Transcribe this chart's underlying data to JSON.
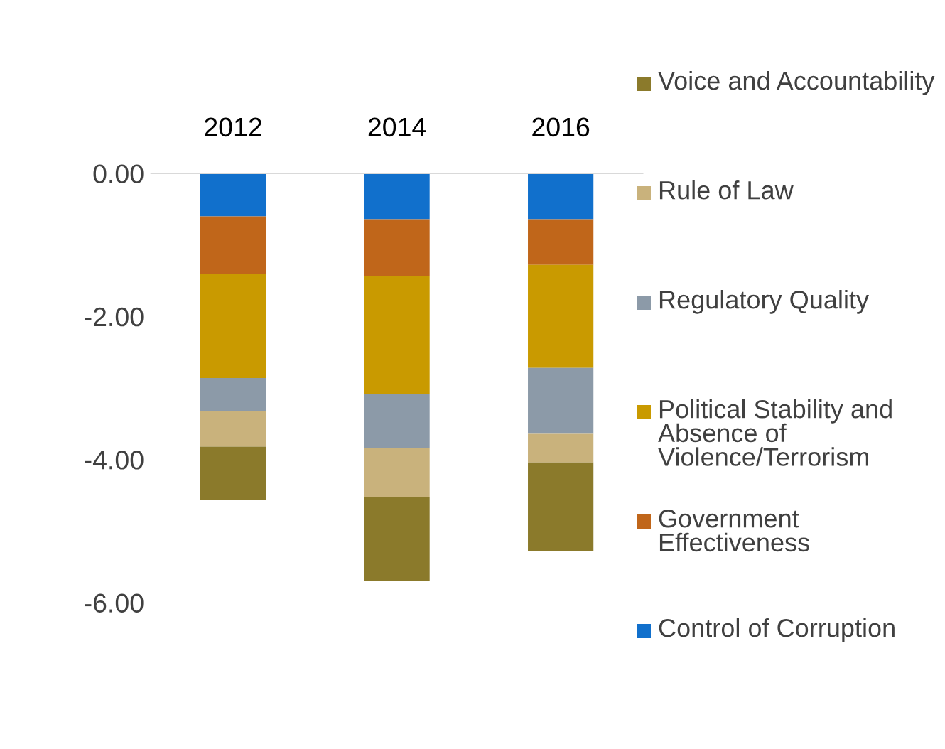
{
  "chart_data": {
    "type": "bar",
    "stacked": true,
    "categories": [
      "2012",
      "2014",
      "2016"
    ],
    "series": [
      {
        "name": "Control of Corruption",
        "color": "#1170cc",
        "values": [
          -0.6,
          -0.64,
          -0.64
        ]
      },
      {
        "name": "Government Effectiveness",
        "color": "#c0661a",
        "values": [
          -0.8,
          -0.8,
          -0.64
        ]
      },
      {
        "name": "Political Stability and Absence of Violence/Terrorism",
        "color": "#c99a00",
        "values": [
          -1.46,
          -1.64,
          -1.44
        ]
      },
      {
        "name": "Regulatory Quality",
        "color": "#8c9aa8",
        "values": [
          -0.46,
          -0.76,
          -0.92
        ]
      },
      {
        "name": "Rule of Law",
        "color": "#c9b27c",
        "values": [
          -0.5,
          -0.68,
          -0.4
        ]
      },
      {
        "name": "Voice and Accountability",
        "color": "#8b7a2b",
        "values": [
          -0.74,
          -1.18,
          -1.24
        ]
      }
    ],
    "ylim": [
      -6,
      0
    ],
    "yticks": [
      {
        "value": 0,
        "label": "0.00"
      },
      {
        "value": -2,
        "label": "-2.00"
      },
      {
        "value": -4,
        "label": "-4.00"
      },
      {
        "value": -6,
        "label": "-6.00"
      }
    ],
    "grid": false,
    "legend": "right"
  }
}
